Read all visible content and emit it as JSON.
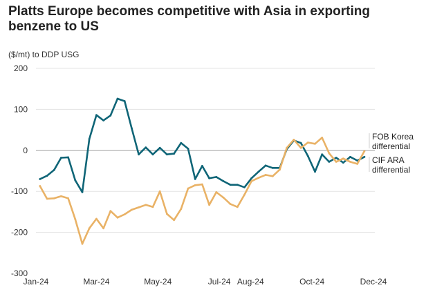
{
  "chart_data": {
    "type": "line",
    "title": "Platts Europe becomes competitive with Asia in exporting benzene to US",
    "ylabel": "($/mt) to DDP USG",
    "xlabel": "",
    "ylim": [
      -300,
      200
    ],
    "yticks": [
      200,
      100,
      0,
      -100,
      -200,
      -300
    ],
    "xlim": [
      "2024-01-01",
      "2024-12-01"
    ],
    "xticks": [
      {
        "label": "Jan-24",
        "date": "2024-01-01"
      },
      {
        "label": "Mar-24",
        "date": "2024-03-01"
      },
      {
        "label": "May-24",
        "date": "2024-05-01"
      },
      {
        "label": "Jul-24",
        "date": "2024-07-01"
      },
      {
        "label": "Aug-24",
        "date": "2024-08-01"
      },
      {
        "label": "Oct-24",
        "date": "2024-10-01"
      },
      {
        "label": "Dec-24",
        "date": "2024-12-01"
      }
    ],
    "grid": "horizontal",
    "legend": "right, end-of-line labels",
    "series": [
      {
        "name_lines": [
          "FOB Korea",
          "differential"
        ],
        "color": "#0f6577",
        "points": [
          [
            "2024-01-05",
            -70
          ],
          [
            "2024-01-12",
            -62
          ],
          [
            "2024-01-19",
            -48
          ],
          [
            "2024-01-26",
            -18
          ],
          [
            "2024-02-02",
            -17
          ],
          [
            "2024-02-09",
            -73
          ],
          [
            "2024-02-16",
            -102
          ],
          [
            "2024-02-23",
            28
          ],
          [
            "2024-03-01",
            86
          ],
          [
            "2024-03-08",
            73
          ],
          [
            "2024-03-15",
            85
          ],
          [
            "2024-03-22",
            126
          ],
          [
            "2024-03-29",
            120
          ],
          [
            "2024-04-05",
            54
          ],
          [
            "2024-04-12",
            -10
          ],
          [
            "2024-04-19",
            7
          ],
          [
            "2024-04-26",
            -10
          ],
          [
            "2024-05-03",
            6
          ],
          [
            "2024-05-10",
            -10
          ],
          [
            "2024-05-17",
            -8
          ],
          [
            "2024-05-24",
            18
          ],
          [
            "2024-05-31",
            4
          ],
          [
            "2024-06-07",
            -70
          ],
          [
            "2024-06-14",
            -38
          ],
          [
            "2024-06-21",
            -68
          ],
          [
            "2024-06-28",
            -65
          ],
          [
            "2024-07-05",
            -75
          ],
          [
            "2024-07-12",
            -84
          ],
          [
            "2024-07-19",
            -84
          ],
          [
            "2024-07-26",
            -90
          ],
          [
            "2024-08-02",
            -68
          ],
          [
            "2024-08-09",
            -52
          ],
          [
            "2024-08-16",
            -37
          ],
          [
            "2024-08-23",
            -43
          ],
          [
            "2024-08-30",
            -43
          ],
          [
            "2024-09-06",
            3
          ],
          [
            "2024-09-13",
            24
          ],
          [
            "2024-09-20",
            18
          ],
          [
            "2024-09-27",
            -14
          ],
          [
            "2024-10-04",
            -52
          ],
          [
            "2024-10-11",
            -10
          ],
          [
            "2024-10-18",
            -28
          ],
          [
            "2024-10-25",
            -18
          ],
          [
            "2024-11-01",
            -30
          ],
          [
            "2024-11-08",
            -16
          ],
          [
            "2024-11-15",
            -25
          ],
          [
            "2024-11-22",
            -16
          ]
        ]
      },
      {
        "name_lines": [
          "CIF ARA",
          "differential"
        ],
        "color": "#e9b266",
        "points": [
          [
            "2024-01-05",
            -87
          ],
          [
            "2024-01-12",
            -118
          ],
          [
            "2024-01-19",
            -117
          ],
          [
            "2024-01-26",
            -112
          ],
          [
            "2024-02-02",
            -117
          ],
          [
            "2024-02-09",
            -168
          ],
          [
            "2024-02-16",
            -228
          ],
          [
            "2024-02-23",
            -190
          ],
          [
            "2024-03-01",
            -167
          ],
          [
            "2024-03-08",
            -190
          ],
          [
            "2024-03-15",
            -148
          ],
          [
            "2024-03-22",
            -164
          ],
          [
            "2024-03-29",
            -156
          ],
          [
            "2024-04-05",
            -145
          ],
          [
            "2024-04-12",
            -139
          ],
          [
            "2024-04-19",
            -133
          ],
          [
            "2024-04-26",
            -138
          ],
          [
            "2024-05-03",
            -100
          ],
          [
            "2024-05-10",
            -155
          ],
          [
            "2024-05-17",
            -170
          ],
          [
            "2024-05-24",
            -143
          ],
          [
            "2024-05-31",
            -93
          ],
          [
            "2024-06-07",
            -85
          ],
          [
            "2024-06-14",
            -83
          ],
          [
            "2024-06-21",
            -133
          ],
          [
            "2024-06-28",
            -102
          ],
          [
            "2024-07-05",
            -115
          ],
          [
            "2024-07-12",
            -131
          ],
          [
            "2024-07-19",
            -138
          ],
          [
            "2024-07-26",
            -108
          ],
          [
            "2024-08-02",
            -75
          ],
          [
            "2024-08-09",
            -67
          ],
          [
            "2024-08-16",
            -60
          ],
          [
            "2024-08-23",
            -63
          ],
          [
            "2024-08-30",
            -47
          ],
          [
            "2024-09-06",
            6
          ],
          [
            "2024-09-13",
            26
          ],
          [
            "2024-09-20",
            6
          ],
          [
            "2024-09-27",
            19
          ],
          [
            "2024-10-04",
            16
          ],
          [
            "2024-10-11",
            31
          ],
          [
            "2024-10-18",
            -7
          ],
          [
            "2024-10-25",
            -28
          ],
          [
            "2024-11-01",
            -20
          ],
          [
            "2024-11-08",
            -28
          ],
          [
            "2024-11-15",
            -33
          ],
          [
            "2024-11-22",
            -2
          ]
        ]
      }
    ]
  }
}
